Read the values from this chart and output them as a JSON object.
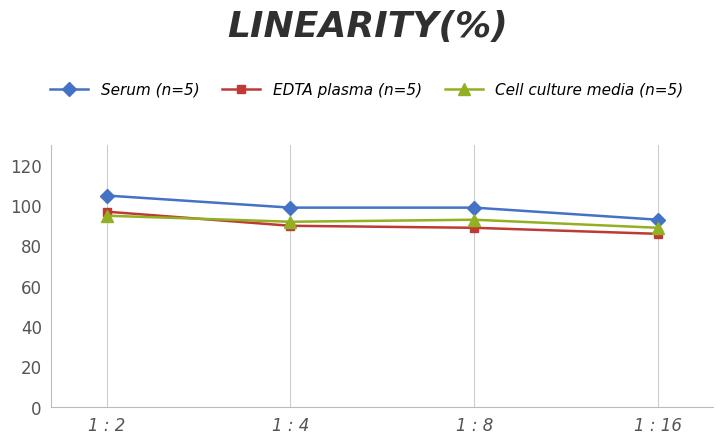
{
  "title": "LINEARITY(%)",
  "title_fontsize": 26,
  "title_color": "#303030",
  "x_labels": [
    "1 : 2",
    "1 : 4",
    "1 : 8",
    "1 : 16"
  ],
  "x_positions": [
    0,
    1,
    2,
    3
  ],
  "series": [
    {
      "label": "Serum (n=5)",
      "values": [
        105,
        99,
        99,
        93
      ],
      "color": "#4472C4",
      "marker": "D",
      "markersize": 7,
      "linewidth": 1.8
    },
    {
      "label": "EDTA plasma (n=5)",
      "values": [
        97,
        90,
        89,
        86
      ],
      "color": "#BE3A34",
      "marker": "s",
      "markersize": 6,
      "linewidth": 1.8
    },
    {
      "label": "Cell culture media (n=5)",
      "values": [
        95,
        92,
        93,
        89
      ],
      "color": "#92B022",
      "marker": "^",
      "markersize": 8,
      "linewidth": 1.8
    }
  ],
  "ylim": [
    0,
    130
  ],
  "yticks": [
    0,
    20,
    40,
    60,
    80,
    100,
    120
  ],
  "grid_color": "#CCCCCC",
  "background_color": "#FFFFFF",
  "legend_fontsize": 11,
  "tick_fontsize": 12,
  "tick_color": "#555555"
}
